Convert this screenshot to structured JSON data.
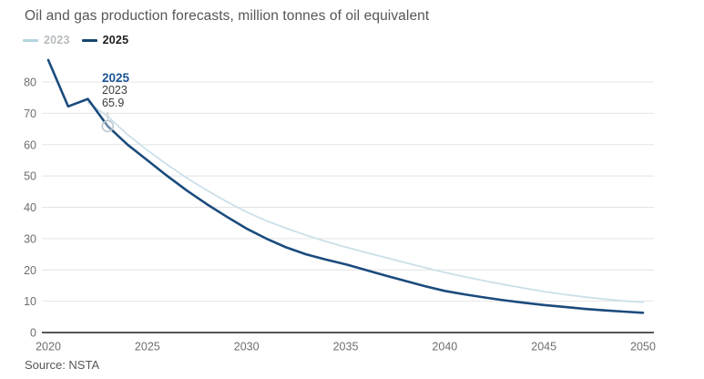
{
  "title": "Oil and gas production forecasts, million tonnes of oil equivalent",
  "source": "Source: NSTA",
  "legend": {
    "items": [
      {
        "label": "2023",
        "line_color": "#b3d4e0",
        "text_color": "#b6bcc0"
      },
      {
        "label": "2025",
        "line_color": "#17466f",
        "text_color": "#1d1d1b"
      }
    ]
  },
  "tooltip": {
    "series_label": "2025",
    "year_label": "2023",
    "value_label": "65.9",
    "header_color": "#1b5394"
  },
  "colors": {
    "background": "#ffffff",
    "title_text": "#565656",
    "axis_text": "#6e6e6e",
    "grid": "#e4e4e4",
    "axis_line": "#1c2024",
    "source_text": "#565656",
    "marker_stroke": "#bcc8ce",
    "connector": "#c9c9c9",
    "series_2023": "#cbdfe9",
    "series_2025": "#1b4b7d"
  },
  "chart_data": {
    "type": "line",
    "title": "Oil and gas production forecasts, million tonnes of oil equivalent",
    "xlabel": "",
    "ylabel": "million tonnes of oil equivalent",
    "x": [
      2020,
      2021,
      2022,
      2023,
      2024,
      2025,
      2026,
      2027,
      2028,
      2029,
      2030,
      2031,
      2032,
      2033,
      2034,
      2035,
      2036,
      2037,
      2038,
      2039,
      2040,
      2041,
      2042,
      2043,
      2044,
      2045,
      2046,
      2047,
      2048,
      2049,
      2050
    ],
    "series": [
      {
        "name": "2023",
        "color": "#cbdfe9",
        "width": 1.8,
        "values": [
          null,
          null,
          73.5,
          69,
          63.2,
          58.2,
          53.6,
          49.3,
          45.4,
          41.8,
          38.5,
          35.7,
          33.3,
          31.1,
          29.1,
          27.3,
          25.6,
          24,
          22.3,
          20.7,
          19.2,
          17.8,
          16.5,
          15.3,
          14.2,
          13.1,
          12.2,
          11.4,
          10.7,
          10.1,
          9.7
        ]
      },
      {
        "name": "2025",
        "color": "#1b4b7d",
        "width": 2.6,
        "values": [
          87,
          72.2,
          74.6,
          65.9,
          60,
          55,
          50,
          45.3,
          41,
          37,
          33.2,
          30,
          27.2,
          25,
          23.3,
          21.8,
          20,
          18.2,
          16.5,
          14.8,
          13.3,
          12.2,
          11.2,
          10.3,
          9.5,
          8.8,
          8.2,
          7.6,
          7.1,
          6.7,
          6.3
        ]
      }
    ],
    "annotation": {
      "series": "2025",
      "x": 2023,
      "y": 65.9
    },
    "xticks": [
      2020,
      2025,
      2030,
      2035,
      2040,
      2045,
      2050
    ],
    "yticks": [
      0,
      10,
      20,
      30,
      40,
      50,
      60,
      70,
      80
    ],
    "xlim": [
      2020,
      2050
    ],
    "ylim": [
      0,
      90
    ],
    "grid": "horizontal",
    "legend_position": "top-left"
  }
}
